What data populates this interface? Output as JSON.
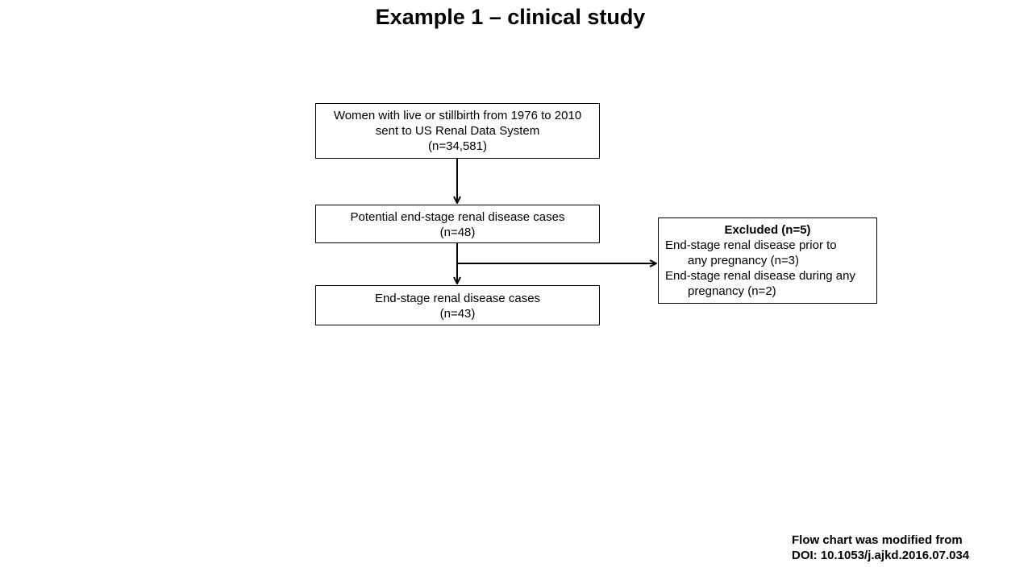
{
  "title": "Example 1 – clinical study",
  "flow": {
    "start": {
      "line1": "Women with live or stillbirth from 1976 to 2010",
      "line2": "sent to US Renal Data System",
      "count": "(n=34,581)"
    },
    "potential": {
      "line1": "Potential end-stage renal disease cases",
      "count": "(n=48)"
    },
    "cases": {
      "line1": "End-stage renal disease cases",
      "count": "(n=43)"
    },
    "excluded": {
      "heading": "Excluded (n=5)",
      "item1_line1": "End-stage renal disease prior to",
      "item1_line2": "any pregnancy (n=3)",
      "item2_line1": "End-stage renal disease during any",
      "item2_line2": "pregnancy (n=2)"
    }
  },
  "credit": {
    "line1": "Flow chart was modified from",
    "line2": "DOI: 10.1053/j.ajkd.2016.07.034"
  },
  "colors": {
    "stroke": "#000000",
    "background": "#ffffff"
  }
}
